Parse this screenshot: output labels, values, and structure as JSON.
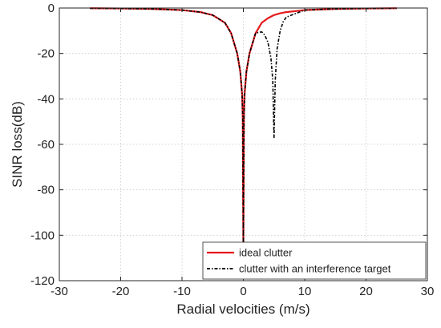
{
  "chart_data": {
    "type": "line",
    "title": "",
    "xlabel": "Radial velocities (m/s)",
    "ylabel": "SINR loss(dB)",
    "xlim": [
      -30,
      30
    ],
    "ylim": [
      -120,
      0
    ],
    "xticks": [
      -30,
      -20,
      -10,
      0,
      10,
      20,
      30
    ],
    "yticks": [
      0,
      -20,
      -40,
      -60,
      -80,
      -100,
      -120
    ],
    "xtick_labels": [
      "-30",
      "-20",
      "-10",
      "0",
      "10",
      "20",
      "30"
    ],
    "ytick_labels": [
      "0",
      "-20",
      "-40",
      "-60",
      "-80",
      "-100",
      "-120"
    ],
    "grid": true,
    "legend_position": "bottom-right",
    "series": [
      {
        "name": "ideal clutter",
        "color": "#e41a1c",
        "style": "solid",
        "x": [
          -25,
          -20,
          -15,
          -10,
          -7,
          -5,
          -3,
          -2,
          -1,
          -0.5,
          -0.2,
          -0.1,
          0,
          0.1,
          0.2,
          0.5,
          1,
          2,
          3,
          4,
          5,
          6,
          7,
          10,
          15,
          20,
          25
        ],
        "y": [
          -0.1,
          -0.2,
          -0.4,
          -0.9,
          -1.8,
          -3.1,
          -6.5,
          -11,
          -20,
          -28,
          -38,
          -48,
          -104,
          -48,
          -38,
          -28,
          -20,
          -11,
          -6.5,
          -4.5,
          -3.1,
          -2.3,
          -1.8,
          -0.9,
          -0.4,
          -0.2,
          -0.1
        ]
      },
      {
        "name": "clutter with an interference target",
        "color": "#000000",
        "style": "dashdot",
        "x": [
          -25,
          -20,
          -15,
          -10,
          -7,
          -5,
          -3,
          -2,
          -1,
          -0.5,
          -0.2,
          -0.1,
          0,
          0.1,
          0.2,
          0.5,
          1,
          2,
          3,
          3.5,
          4,
          4.5,
          4.8,
          5,
          5.2,
          5.5,
          6,
          6.5,
          7,
          10,
          15,
          20,
          25
        ],
        "y": [
          -0.1,
          -0.2,
          -0.4,
          -0.9,
          -1.8,
          -3.1,
          -6.5,
          -11,
          -20,
          -28,
          -38,
          -48,
          -104,
          -48,
          -38,
          -28,
          -20,
          -11,
          -10.5,
          -12,
          -15,
          -22,
          -32,
          -57,
          -32,
          -18,
          -10,
          -6,
          -4,
          -0.9,
          -0.4,
          -0.2,
          -0.1
        ]
      }
    ]
  }
}
